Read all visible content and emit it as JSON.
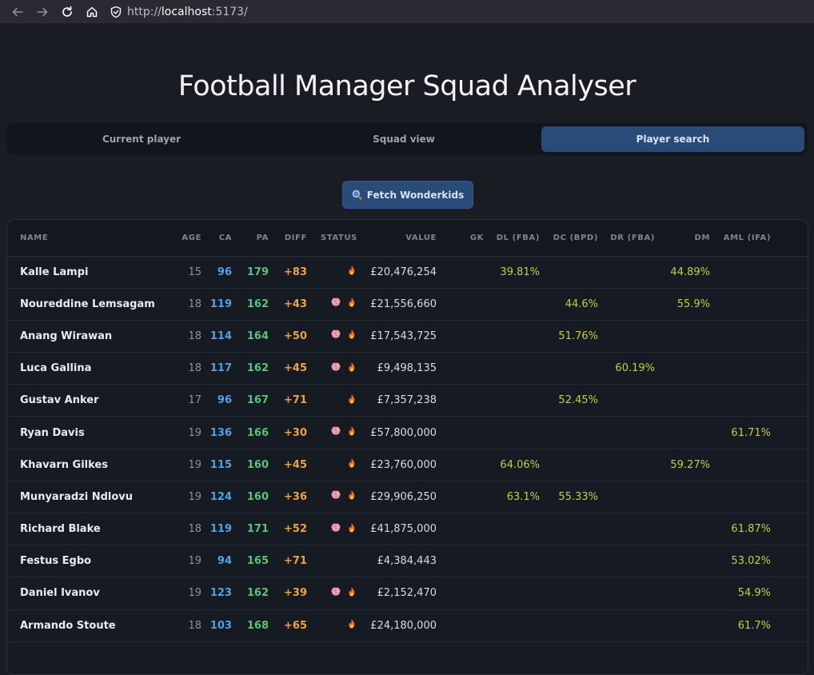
{
  "browser": {
    "url_prefix": "http://",
    "url_host": "localhost",
    "url_suffix": ":5173/"
  },
  "app": {
    "title": "Football Manager Squad Analyser",
    "tabs": [
      {
        "label": "Current player",
        "active": false
      },
      {
        "label": "Squad view",
        "active": false
      },
      {
        "label": "Player search",
        "active": true
      }
    ],
    "fetch_button": "Fetch Wonderkids"
  },
  "table": {
    "columns": [
      "NAME",
      "AGE",
      "CA",
      "PA",
      "DIFF",
      "STATUS",
      "VALUE",
      "GK",
      "DL (FBA)",
      "DC (BPD)",
      "DR (FBA)",
      "DM",
      "AML (IFA)"
    ],
    "rows": [
      {
        "name": "Kalle Lampi",
        "age": "15",
        "ca": "96",
        "pa": "179",
        "diff": "+83",
        "status": [
          "fire"
        ],
        "value": "£20,476,254",
        "gk": "",
        "dl": "39.81%",
        "dc": "",
        "dr": "",
        "dm": "44.89%",
        "aml": ""
      },
      {
        "name": "Noureddine Lemsagam",
        "age": "18",
        "ca": "119",
        "pa": "162",
        "diff": "+43",
        "status": [
          "brain",
          "fire"
        ],
        "value": "£21,556,660",
        "gk": "",
        "dl": "",
        "dc": "44.6%",
        "dr": "",
        "dm": "55.9%",
        "aml": ""
      },
      {
        "name": "Anang Wirawan",
        "age": "18",
        "ca": "114",
        "pa": "164",
        "diff": "+50",
        "status": [
          "brain",
          "fire"
        ],
        "value": "£17,543,725",
        "gk": "",
        "dl": "",
        "dc": "51.76%",
        "dr": "",
        "dm": "",
        "aml": ""
      },
      {
        "name": "Luca Gallina",
        "age": "18",
        "ca": "117",
        "pa": "162",
        "diff": "+45",
        "status": [
          "brain",
          "fire"
        ],
        "value": "£9,498,135",
        "gk": "",
        "dl": "",
        "dc": "",
        "dr": "60.19%",
        "dm": "",
        "aml": ""
      },
      {
        "name": "Gustav Anker",
        "age": "17",
        "ca": "96",
        "pa": "167",
        "diff": "+71",
        "status": [
          "fire"
        ],
        "value": "£7,357,238",
        "gk": "",
        "dl": "",
        "dc": "52.45%",
        "dr": "",
        "dm": "",
        "aml": ""
      },
      {
        "name": "Ryan Davis",
        "age": "19",
        "ca": "136",
        "pa": "166",
        "diff": "+30",
        "status": [
          "brain",
          "fire"
        ],
        "value": "£57,800,000",
        "gk": "",
        "dl": "",
        "dc": "",
        "dr": "",
        "dm": "",
        "aml": "61.71%"
      },
      {
        "name": "Khavarn Gilkes",
        "age": "19",
        "ca": "115",
        "pa": "160",
        "diff": "+45",
        "status": [
          "fire"
        ],
        "value": "£23,760,000",
        "gk": "",
        "dl": "64.06%",
        "dc": "",
        "dr": "",
        "dm": "59.27%",
        "aml": ""
      },
      {
        "name": "Munyaradzi Ndlovu",
        "age": "19",
        "ca": "124",
        "pa": "160",
        "diff": "+36",
        "status": [
          "brain",
          "fire"
        ],
        "value": "£29,906,250",
        "gk": "",
        "dl": "63.1%",
        "dc": "55.33%",
        "dr": "",
        "dm": "",
        "aml": ""
      },
      {
        "name": "Richard Blake",
        "age": "18",
        "ca": "119",
        "pa": "171",
        "diff": "+52",
        "status": [
          "brain",
          "fire"
        ],
        "value": "£41,875,000",
        "gk": "",
        "dl": "",
        "dc": "",
        "dr": "",
        "dm": "",
        "aml": "61.87%"
      },
      {
        "name": "Festus Egbo",
        "age": "19",
        "ca": "94",
        "pa": "165",
        "diff": "+71",
        "status": [],
        "value": "£4,384,443",
        "gk": "",
        "dl": "",
        "dc": "",
        "dr": "",
        "dm": "",
        "aml": "53.02%"
      },
      {
        "name": "Daniel Ivanov",
        "age": "19",
        "ca": "123",
        "pa": "162",
        "diff": "+39",
        "status": [
          "brain",
          "fire"
        ],
        "value": "£2,152,470",
        "gk": "",
        "dl": "",
        "dc": "",
        "dr": "",
        "dm": "",
        "aml": "54.9%"
      },
      {
        "name": "Armando Stoute",
        "age": "18",
        "ca": "103",
        "pa": "168",
        "diff": "+65",
        "status": [
          "fire"
        ],
        "value": "£24,180,000",
        "gk": "",
        "dl": "",
        "dc": "",
        "dr": "",
        "dm": "",
        "aml": "61.7%"
      }
    ]
  }
}
